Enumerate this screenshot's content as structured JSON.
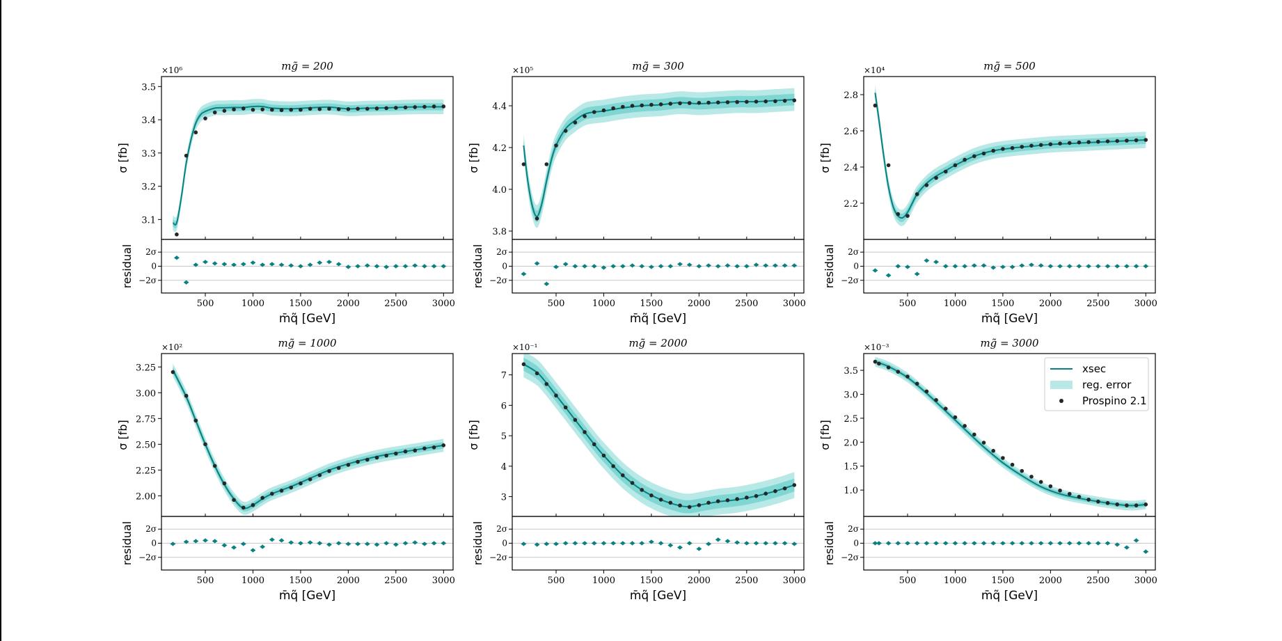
{
  "figure": {
    "colors": {
      "line": "#0b8080",
      "band_inner": "#7fd6d2",
      "band_outer": "#b8e9e6",
      "points": "#262626",
      "resid": "#0b8080",
      "grid": "#c8c8c8"
    },
    "legend": {
      "entries": [
        "xsec",
        "reg. error",
        "Prospino 2.1"
      ],
      "placement": "upper right of last panel"
    },
    "common": {
      "xlabel": "m̄q̃ [GeV]",
      "ylabel": "σ [fb]",
      "residual_label": "residual",
      "xticks": [
        500,
        1000,
        1500,
        2000,
        2500,
        3000
      ],
      "resid_ticks": [
        "2σ",
        "0",
        "−2σ"
      ]
    }
  },
  "chart_data": [
    {
      "type": "line",
      "title": "mg̃ = 200",
      "multiplier": "×10⁶",
      "xlabel": "m̄q̃ [GeV]",
      "ylabel": "σ [fb]",
      "xlim": [
        40,
        3100
      ],
      "ylim": [
        3.04,
        3.53
      ],
      "yticks": [
        3.1,
        3.2,
        3.3,
        3.4,
        3.5
      ],
      "ytick_labels": [
        "3.1",
        "3.2",
        "3.3",
        "3.4",
        "3.5"
      ],
      "band_inner": 0.022,
      "band_outer": 0.045,
      "line": {
        "x": [
          160,
          200,
          250,
          300,
          350,
          400,
          450,
          500,
          600,
          700,
          800,
          900,
          1000,
          1100,
          1200,
          1400,
          1600,
          1800,
          2000,
          2200,
          2400,
          2600,
          2800,
          3000
        ],
        "y": [
          3.09,
          3.09,
          3.17,
          3.27,
          3.34,
          3.39,
          3.415,
          3.425,
          3.435,
          3.436,
          3.437,
          3.437,
          3.44,
          3.44,
          3.435,
          3.433,
          3.436,
          3.438,
          3.433,
          3.435,
          3.436,
          3.438,
          3.439,
          3.439
        ]
      },
      "points": {
        "x": [
          200,
          300,
          400,
          500,
          600,
          700,
          800,
          900,
          1000,
          1100,
          1200,
          1300,
          1400,
          1500,
          1600,
          1700,
          1800,
          1900,
          2000,
          2100,
          2200,
          2300,
          2400,
          2500,
          2600,
          2700,
          2800,
          2900,
          3000
        ],
        "y": [
          3.055,
          3.292,
          3.362,
          3.404,
          3.422,
          3.427,
          3.431,
          3.434,
          3.43,
          3.431,
          3.43,
          3.429,
          3.43,
          3.43,
          3.433,
          3.432,
          3.433,
          3.432,
          3.432,
          3.433,
          3.433,
          3.434,
          3.435,
          3.436,
          3.437,
          3.438,
          3.439,
          3.44,
          3.44
        ]
      },
      "residuals": [
        1.2,
        -2.3,
        0.2,
        0.6,
        0.4,
        0.3,
        0.2,
        0.3,
        0.5,
        0.2,
        0.3,
        0.2,
        0.1,
        0.0,
        0.2,
        0.5,
        0.6,
        0.3,
        -0.1,
        0.0,
        0.1,
        0.0,
        -0.1,
        0.0,
        0.0,
        0.1,
        0.0,
        0.0,
        0.0
      ]
    },
    {
      "type": "line",
      "title": "mg̃ = 300",
      "multiplier": "×10⁵",
      "xlabel": "m̄q̃ [GeV]",
      "ylabel": "σ [fb]",
      "xlim": [
        40,
        3100
      ],
      "ylim": [
        3.76,
        4.54
      ],
      "yticks": [
        3.8,
        4.0,
        4.2,
        4.4
      ],
      "ytick_labels": [
        "3.8",
        "4.0",
        "4.2",
        "4.4"
      ],
      "band_inner": 0.035,
      "band_outer": 0.07,
      "line": {
        "x": [
          160,
          200,
          250,
          300,
          350,
          400,
          450,
          500,
          600,
          700,
          800,
          900,
          1000,
          1200,
          1400,
          1600,
          1800,
          2000,
          2200,
          2400,
          2600,
          2800,
          3000
        ],
        "y": [
          4.21,
          4.05,
          3.92,
          3.87,
          3.93,
          4.04,
          4.14,
          4.21,
          4.29,
          4.33,
          4.36,
          4.37,
          4.375,
          4.39,
          4.4,
          4.405,
          4.415,
          4.41,
          4.415,
          4.42,
          4.42,
          4.425,
          4.43
        ]
      },
      "points": {
        "x": [
          160,
          300,
          400,
          500,
          600,
          700,
          800,
          900,
          1000,
          1100,
          1200,
          1300,
          1400,
          1500,
          1600,
          1700,
          1800,
          1900,
          2000,
          2100,
          2200,
          2300,
          2400,
          2500,
          2600,
          2700,
          2800,
          2900,
          3000
        ],
        "y": [
          4.12,
          3.86,
          4.12,
          4.21,
          4.28,
          4.32,
          4.35,
          4.37,
          4.378,
          4.388,
          4.395,
          4.4,
          4.402,
          4.405,
          4.407,
          4.41,
          4.412,
          4.413,
          4.414,
          4.415,
          4.416,
          4.417,
          4.418,
          4.419,
          4.42,
          4.421,
          4.422,
          4.424,
          4.426
        ]
      },
      "residuals": [
        -1.1,
        0.4,
        -2.5,
        -0.1,
        0.3,
        0.0,
        0.0,
        0.0,
        -0.2,
        0.0,
        0.0,
        0.1,
        0.0,
        -0.1,
        0.0,
        0.0,
        0.3,
        0.2,
        0.0,
        0.1,
        0.0,
        0.1,
        0.0,
        0.0,
        0.2,
        0.1,
        0.1,
        0.1,
        0.1
      ]
    },
    {
      "type": "line",
      "title": "mg̃ = 500",
      "multiplier": "×10⁴",
      "xlabel": "m̄q̃ [GeV]",
      "ylabel": "σ [fb]",
      "xlim": [
        40,
        3100
      ],
      "ylim": [
        2.0,
        2.9
      ],
      "yticks": [
        2.2,
        2.4,
        2.6,
        2.8
      ],
      "ytick_labels": [
        "2.2",
        "2.4",
        "2.6",
        "2.8"
      ],
      "band_inner": 0.025,
      "band_outer": 0.05,
      "line": {
        "x": [
          160,
          200,
          250,
          300,
          350,
          400,
          450,
          500,
          550,
          600,
          700,
          800,
          900,
          1000,
          1200,
          1400,
          1600,
          1800,
          2000,
          2200,
          2400,
          2600,
          2800,
          3000
        ],
        "y": [
          2.81,
          2.66,
          2.46,
          2.29,
          2.18,
          2.13,
          2.12,
          2.15,
          2.2,
          2.25,
          2.31,
          2.35,
          2.38,
          2.41,
          2.46,
          2.49,
          2.505,
          2.515,
          2.525,
          2.53,
          2.535,
          2.54,
          2.545,
          2.55
        ]
      },
      "points": {
        "x": [
          160,
          300,
          400,
          500,
          600,
          700,
          800,
          900,
          1000,
          1100,
          1200,
          1300,
          1400,
          1500,
          1600,
          1700,
          1800,
          1900,
          2000,
          2100,
          2200,
          2300,
          2400,
          2500,
          2600,
          2700,
          2800,
          2900,
          3000
        ],
        "y": [
          2.74,
          2.41,
          2.14,
          2.13,
          2.25,
          2.3,
          2.34,
          2.375,
          2.41,
          2.44,
          2.46,
          2.475,
          2.49,
          2.5,
          2.505,
          2.512,
          2.518,
          2.522,
          2.526,
          2.53,
          2.533,
          2.536,
          2.538,
          2.54,
          2.542,
          2.544,
          2.546,
          2.548,
          2.55
        ]
      },
      "residuals": [
        -0.6,
        -1.3,
        0.0,
        -0.1,
        -1.1,
        0.8,
        0.6,
        0.0,
        0.0,
        0.0,
        0.1,
        0.1,
        -0.2,
        -0.1,
        -0.1,
        0.1,
        0.2,
        0.1,
        0.0,
        0.0,
        0.0,
        0.0,
        0.0,
        0.0,
        0.0,
        0.0,
        0.0,
        0.0,
        0.0
      ]
    },
    {
      "type": "line",
      "title": "mg̃ = 1000",
      "multiplier": "×10²",
      "xlabel": "m̄q̃ [GeV]",
      "ylabel": "σ [fb]",
      "xlim": [
        40,
        3100
      ],
      "ylim": [
        1.8,
        3.38
      ],
      "yticks": [
        2.0,
        2.25,
        2.5,
        2.75,
        3.0,
        3.25
      ],
      "ytick_labels": [
        "2.00",
        "2.25",
        "2.50",
        "2.75",
        "3.00",
        "3.25"
      ],
      "band_inner": 0.02,
      "band_outer": 0.04,
      "line": {
        "x": [
          160,
          300,
          400,
          500,
          600,
          700,
          800,
          900,
          1000,
          1100,
          1200,
          1400,
          1600,
          1800,
          2000,
          2200,
          2400,
          2600,
          2800,
          3000
        ],
        "y": [
          3.22,
          2.96,
          2.73,
          2.5,
          2.29,
          2.11,
          1.97,
          1.88,
          1.91,
          1.97,
          2.02,
          2.09,
          2.17,
          2.25,
          2.31,
          2.36,
          2.4,
          2.43,
          2.46,
          2.49
        ]
      },
      "points": {
        "x": [
          160,
          300,
          400,
          500,
          600,
          700,
          800,
          900,
          1000,
          1100,
          1200,
          1300,
          1400,
          1500,
          1600,
          1700,
          1800,
          1900,
          2000,
          2100,
          2200,
          2300,
          2400,
          2500,
          2600,
          2700,
          2800,
          2900,
          3000
        ],
        "y": [
          3.2,
          2.97,
          2.73,
          2.5,
          2.29,
          2.12,
          1.96,
          1.885,
          1.91,
          1.98,
          2.02,
          2.05,
          2.08,
          2.12,
          2.16,
          2.2,
          2.24,
          2.27,
          2.3,
          2.33,
          2.35,
          2.37,
          2.39,
          2.41,
          2.43,
          2.44,
          2.46,
          2.47,
          2.49
        ]
      },
      "residuals": [
        -0.1,
        0.2,
        0.3,
        0.4,
        0.3,
        -0.3,
        -0.6,
        -0.1,
        -1.0,
        -0.5,
        0.5,
        0.4,
        0.1,
        0.0,
        0.1,
        0.0,
        -0.2,
        0.0,
        -0.1,
        -0.1,
        -0.1,
        -0.2,
        0.0,
        -0.2,
        0.0,
        0.1,
        -0.1,
        0.0,
        0.0
      ]
    },
    {
      "type": "line",
      "title": "mg̃ = 2000",
      "multiplier": "×10⁻¹",
      "xlabel": "m̄q̃ [GeV]",
      "ylabel": "σ [fb]",
      "xlim": [
        40,
        3100
      ],
      "ylim": [
        2.35,
        7.7
      ],
      "yticks": [
        3,
        4,
        5,
        6,
        7
      ],
      "ytick_labels": [
        "3",
        "4",
        "5",
        "6",
        "7"
      ],
      "band_inner": 0.04,
      "band_outer": 0.08,
      "line": {
        "x": [
          160,
          300,
          400,
          500,
          600,
          700,
          800,
          900,
          1000,
          1200,
          1400,
          1600,
          1800,
          1900,
          2000,
          2200,
          2400,
          2600,
          2800,
          3000
        ],
        "y": [
          7.35,
          7.08,
          6.73,
          6.33,
          5.93,
          5.52,
          5.12,
          4.72,
          4.35,
          3.7,
          3.22,
          2.9,
          2.7,
          2.67,
          2.72,
          2.83,
          2.9,
          3.02,
          3.18,
          3.38
        ]
      },
      "points": {
        "x": [
          160,
          300,
          400,
          500,
          600,
          700,
          800,
          900,
          1000,
          1100,
          1200,
          1300,
          1400,
          1500,
          1600,
          1700,
          1800,
          1900,
          2000,
          2100,
          2200,
          2300,
          2400,
          2500,
          2600,
          2700,
          2800,
          2900,
          3000
        ],
        "y": [
          7.35,
          7.05,
          6.7,
          6.32,
          5.93,
          5.52,
          5.12,
          4.72,
          4.35,
          4.0,
          3.7,
          3.45,
          3.22,
          3.04,
          2.9,
          2.8,
          2.71,
          2.66,
          2.72,
          2.8,
          2.85,
          2.88,
          2.92,
          2.97,
          3.02,
          3.1,
          3.18,
          3.27,
          3.38
        ]
      },
      "residuals": [
        -0.1,
        -0.2,
        -0.1,
        -0.1,
        0.0,
        0.0,
        0.0,
        0.0,
        0.0,
        0.0,
        0.0,
        0.0,
        0.0,
        0.2,
        0.0,
        -0.3,
        -0.6,
        0.0,
        -0.8,
        -0.1,
        0.5,
        0.3,
        0.1,
        0.0,
        0.0,
        0.0,
        0.0,
        0.0,
        -0.1
      ]
    },
    {
      "type": "line",
      "title": "mg̃ = 3000",
      "multiplier": "×10⁻³",
      "xlabel": "m̄q̃ [GeV]",
      "ylabel": "σ [fb]",
      "xlim": [
        40,
        3100
      ],
      "ylim": [
        0.45,
        3.85
      ],
      "yticks": [
        1.0,
        1.5,
        2.0,
        2.5,
        3.0,
        3.5
      ],
      "ytick_labels": [
        "1.0",
        "1.5",
        "2.0",
        "2.5",
        "3.0",
        "3.5"
      ],
      "band_inner": 0.015,
      "band_outer": 0.03,
      "line": {
        "x": [
          160,
          300,
          500,
          700,
          900,
          1100,
          1300,
          1500,
          1700,
          1900,
          2100,
          2300,
          2500,
          2700,
          2800,
          2900,
          3000
        ],
        "y": [
          3.68,
          3.58,
          3.35,
          3.02,
          2.65,
          2.27,
          1.9,
          1.57,
          1.3,
          1.07,
          0.92,
          0.83,
          0.76,
          0.7,
          0.68,
          0.68,
          0.7
        ]
      },
      "points": {
        "x": [
          160,
          200,
          300,
          400,
          500,
          600,
          700,
          800,
          900,
          1000,
          1100,
          1200,
          1300,
          1400,
          1500,
          1600,
          1700,
          1800,
          1900,
          2000,
          2100,
          2200,
          2300,
          2400,
          2500,
          2600,
          2700,
          2800,
          2900,
          3000
        ],
        "y": [
          3.68,
          3.64,
          3.56,
          3.47,
          3.37,
          3.22,
          3.06,
          2.88,
          2.7,
          2.52,
          2.34,
          2.16,
          1.99,
          1.82,
          1.67,
          1.53,
          1.4,
          1.28,
          1.17,
          1.08,
          0.99,
          0.92,
          0.86,
          0.8,
          0.76,
          0.73,
          0.7,
          0.68,
          0.68,
          0.7
        ]
      },
      "residuals": [
        0.0,
        0.0,
        0.0,
        0.0,
        0.0,
        0.0,
        0.0,
        0.0,
        0.0,
        0.0,
        0.0,
        0.0,
        0.0,
        0.0,
        0.0,
        0.0,
        0.0,
        0.0,
        0.0,
        0.0,
        0.0,
        0.0,
        0.0,
        0.0,
        0.0,
        0.0,
        -0.2,
        -0.6,
        0.4,
        -1.2
      ]
    }
  ]
}
